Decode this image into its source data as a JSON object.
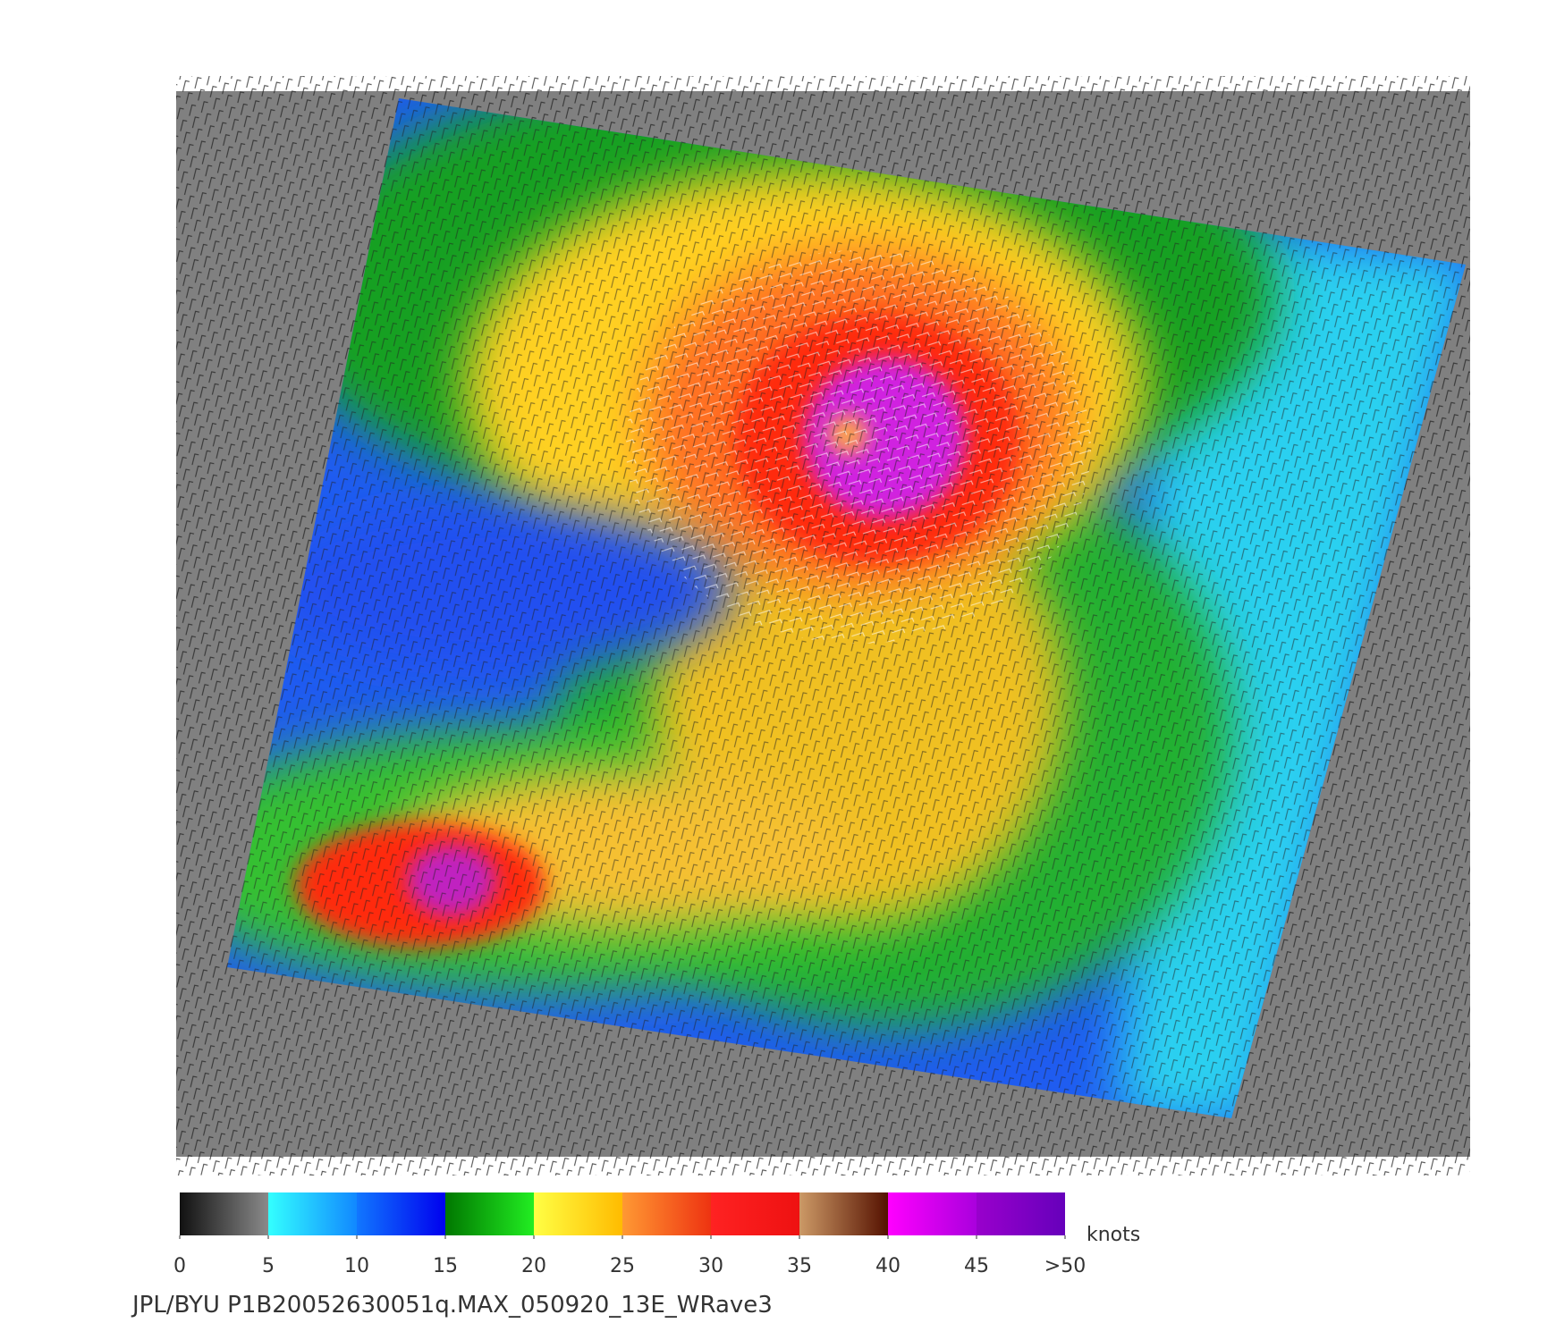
{
  "colorbar": {
    "lim": [
      0,
      50
    ],
    "ticks": [
      0,
      5,
      10,
      15,
      20,
      25,
      30,
      35,
      40,
      45,
      {
        "value": 50,
        "label": ">50"
      }
    ],
    "colors": [
      [
        "#111111",
        "#8a8a8a"
      ],
      [
        "#33ffff",
        "#1188ff"
      ],
      [
        "#1177ff",
        "#0000ee"
      ],
      [
        "#007700",
        "#22ee22"
      ],
      [
        "#ffff44",
        "#ffbb00"
      ],
      [
        "#ff9933",
        "#ee3311"
      ],
      [
        "#ff2222",
        "#ee1111"
      ],
      [
        "#cc9966",
        "#551100"
      ],
      [
        "#ff00ff",
        "#aa00dd"
      ],
      [
        "#9900cc",
        "#6600bb"
      ]
    ],
    "unit": "knots"
  },
  "caption": "JPL/BYU  P1B20052630051q.MAX_050920_13E_WRave3"
}
